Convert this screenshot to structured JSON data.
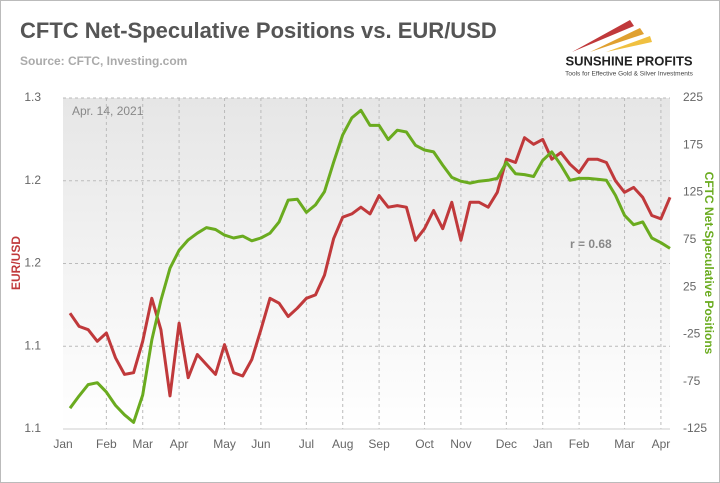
{
  "chart_data": {
    "type": "line",
    "title": "CFTC Net-Speculative Positions vs. EUR/USD",
    "subtitle": "Source: CFTC, Investing.com",
    "logo_name": "SUNSHINE PROFITS",
    "logo_tagline": "Tools for Effective Gold & Silver Investments",
    "date_annotation": "Apr. 14, 2021",
    "r_annotation": "r = 0.68",
    "ylabel": "EUR/USD",
    "y2label": "CFTC Net-Speculative Positions",
    "categories": [
      "Jan",
      null,
      null,
      null,
      "Feb",
      null,
      null,
      null,
      "Mar",
      null,
      null,
      null,
      "Apr",
      null,
      null,
      null,
      null,
      "May",
      null,
      null,
      null,
      "Jun",
      null,
      null,
      null,
      null,
      "Jul",
      null,
      null,
      null,
      "Aug",
      null,
      null,
      null,
      "Sep",
      null,
      null,
      null,
      null,
      "Oct",
      null,
      null,
      null,
      "Nov",
      null,
      null,
      null,
      null,
      "Dec",
      null,
      null,
      null,
      "Jan",
      null,
      null,
      null,
      "Feb",
      null,
      null,
      null,
      null,
      "Mar",
      null,
      null,
      null,
      "Apr",
      null
    ],
    "ylim": [
      1.1,
      1.3
    ],
    "yticks": [
      1.3,
      {
        "value": 1.25,
        "label": "1.2"
      },
      1.2,
      {
        "value": 1.15,
        "label": "1.1"
      },
      1.1
    ],
    "y2lim": [
      -125,
      225
    ],
    "y2ticks": [
      225,
      175,
      125,
      75,
      25,
      -25,
      -75,
      -125
    ],
    "grid": true,
    "series": [
      {
        "name": "EUR/USD",
        "color": "#c0393b",
        "axis": "y",
        "values": [
          1.17,
          1.162,
          1.16,
          1.153,
          1.158,
          1.143,
          1.133,
          1.134,
          1.153,
          1.179,
          1.16,
          1.12,
          1.164,
          1.131,
          1.145,
          1.139,
          1.133,
          1.151,
          1.134,
          1.132,
          1.142,
          1.16,
          1.179,
          1.176,
          1.168,
          1.173,
          1.179,
          1.181,
          1.193,
          1.215,
          1.228,
          1.23,
          1.234,
          1.23,
          1.241,
          1.234,
          1.235,
          1.234,
          1.214,
          1.221,
          1.232,
          1.221,
          1.237,
          1.214,
          1.237,
          1.237,
          1.234,
          1.243,
          1.263,
          1.261,
          1.276,
          1.272,
          1.275,
          1.263,
          1.267,
          1.26,
          1.255,
          1.263,
          1.263,
          1.261,
          1.25,
          1.243,
          1.246,
          1.24,
          1.229,
          1.227,
          1.24
        ]
      },
      {
        "name": "CFTC Net-Speculative Positions",
        "color": "#6aab1f",
        "axis": "y2",
        "values": [
          -103,
          -90,
          -78,
          -76,
          -86,
          -100,
          -110,
          -118,
          -89,
          -31,
          11,
          45,
          64,
          75,
          82,
          88,
          86,
          80,
          77,
          79,
          74,
          77,
          82,
          94,
          117,
          118,
          104,
          112,
          126,
          157,
          186,
          204,
          212,
          196,
          196,
          181,
          191,
          189,
          175,
          170,
          168,
          154,
          141,
          137,
          135,
          137,
          138,
          140,
          157,
          145,
          144,
          142,
          159,
          168,
          154,
          138,
          140,
          140,
          139,
          138,
          122,
          101,
          91,
          94,
          77,
          72,
          66
        ]
      }
    ]
  }
}
